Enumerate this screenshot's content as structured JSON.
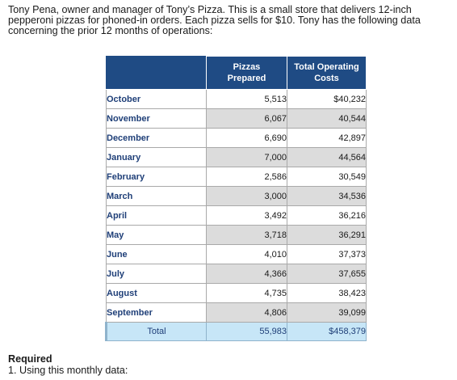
{
  "intro": {
    "line1": "Tony Pena, owner and manager of Tony’s Pizza. This is a small store that delivers 12-inch",
    "line2": "pepperoni pizzas for phoned-in orders. Each pizza sells for $10. Tony has the following data",
    "line3": "concerning the prior 12 months of operations:"
  },
  "table": {
    "headers": {
      "month": "",
      "pizzas_line1": "Pizzas",
      "pizzas_line2": "Prepared",
      "costs_line1": "Total Operating",
      "costs_line2": "Costs"
    },
    "rows": [
      {
        "month": "October",
        "pizzas": "5,513",
        "costs": "$40,232"
      },
      {
        "month": "November",
        "pizzas": "6,067",
        "costs": "40,544"
      },
      {
        "month": "December",
        "pizzas": "6,690",
        "costs": "42,897"
      },
      {
        "month": "January",
        "pizzas": "7,000",
        "costs": "44,564"
      },
      {
        "month": "February",
        "pizzas": "2,586",
        "costs": "30,549"
      },
      {
        "month": "March",
        "pizzas": "3,000",
        "costs": "34,536"
      },
      {
        "month": "April",
        "pizzas": "3,492",
        "costs": "36,216"
      },
      {
        "month": "May",
        "pizzas": "3,718",
        "costs": "36,291"
      },
      {
        "month": "June",
        "pizzas": "4,010",
        "costs": "37,373"
      },
      {
        "month": "July",
        "pizzas": "4,366",
        "costs": "37,655"
      },
      {
        "month": "August",
        "pizzas": "4,735",
        "costs": "38,423"
      },
      {
        "month": "September",
        "pizzas": "4,806",
        "costs": "39,099"
      }
    ],
    "total": {
      "label": "Total",
      "pizzas": "55,983",
      "costs": "$458,379"
    }
  },
  "required": {
    "title": "Required",
    "item1": "1.  Using this monthly data:"
  },
  "colors": {
    "header_bg": "#1f4b84",
    "month_text": "#1f3f78",
    "alt_row": "#dcdcdc",
    "total_bg": "#c7e6f7"
  }
}
